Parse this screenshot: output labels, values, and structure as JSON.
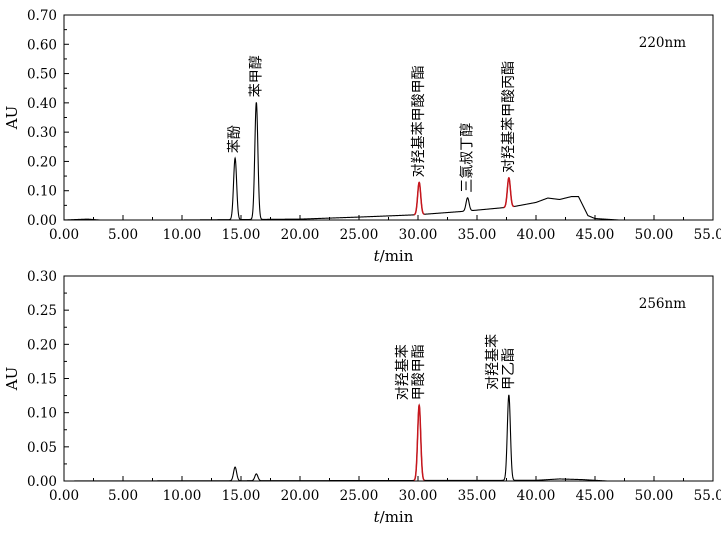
{
  "chart_data": [
    {
      "type": "line",
      "wavelength_label": "220nm",
      "ylabel": "AU",
      "xlabel_italic": "t",
      "xlabel_unit": "/min",
      "xlim": [
        0,
        55
      ],
      "ylim": [
        0,
        0.7
      ],
      "x_ticks": [
        "0.00",
        "5.00",
        "10.00",
        "15.00",
        "20.00",
        "25.00",
        "30.00",
        "35.00",
        "40.00",
        "45.00",
        "50.00",
        "55.00"
      ],
      "y_ticks": [
        "0.00",
        "0.10",
        "0.20",
        "0.30",
        "0.40",
        "0.50",
        "0.60",
        "0.70"
      ],
      "baseline": [
        [
          0,
          0.0
        ],
        [
          2,
          0.003
        ],
        [
          3,
          0.0
        ],
        [
          10,
          0.0
        ],
        [
          20,
          0.003
        ],
        [
          25,
          0.01
        ],
        [
          30,
          0.018
        ],
        [
          34,
          0.03
        ],
        [
          38,
          0.045
        ],
        [
          40,
          0.06
        ],
        [
          41,
          0.075
        ],
        [
          42,
          0.07
        ],
        [
          43,
          0.08
        ],
        [
          43.6,
          0.08
        ],
        [
          44.4,
          0.015
        ],
        [
          45,
          0.005
        ],
        [
          47,
          0.0
        ],
        [
          55,
          0.0
        ]
      ],
      "peaks": [
        {
          "label": "苯酚",
          "rt": 14.5,
          "height": 0.21,
          "highlight": false
        },
        {
          "label": "苯甲醇",
          "rt": 16.3,
          "height": 0.4,
          "highlight": false
        },
        {
          "label": "对羟基苯甲酸甲酯",
          "rt": 30.1,
          "height": 0.11,
          "highlight": true
        },
        {
          "label": "三氯叔丁醇",
          "rt": 34.2,
          "height": 0.045,
          "highlight": false
        },
        {
          "label": "对羟基苯甲酸丙酯",
          "rt": 37.7,
          "height": 0.1,
          "highlight": true
        }
      ]
    },
    {
      "type": "line",
      "wavelength_label": "256nm",
      "ylabel": "AU",
      "xlabel_italic": "t",
      "xlabel_unit": "/min",
      "xlim": [
        0,
        55
      ],
      "ylim": [
        0,
        0.3
      ],
      "x_ticks": [
        "0.00",
        "5.00",
        "10.00",
        "15.00",
        "20.00",
        "25.00",
        "30.00",
        "35.00",
        "40.00",
        "45.00",
        "50.00",
        "55.00"
      ],
      "y_ticks": [
        "0.00",
        "0.05",
        "0.10",
        "0.15",
        "0.20",
        "0.25",
        "0.30"
      ],
      "baseline": [
        [
          0,
          0.0
        ],
        [
          40,
          0.001
        ],
        [
          42,
          0.003
        ],
        [
          44,
          0.002
        ],
        [
          46,
          0.0
        ],
        [
          55,
          0.0
        ]
      ],
      "peaks": [
        {
          "label": "",
          "rt": 14.5,
          "height": 0.02,
          "highlight": false
        },
        {
          "label": "",
          "rt": 16.3,
          "height": 0.01,
          "highlight": false
        },
        {
          "label": "对羟基苯甲酸甲酯",
          "label_lines": [
            "对羟基苯",
            "甲酸甲酯"
          ],
          "rt": 30.1,
          "height": 0.11,
          "highlight": true
        },
        {
          "label": "对羟基苯甲乙酯",
          "label_lines": [
            "对羟基苯",
            "甲乙酯"
          ],
          "rt": 37.7,
          "height": 0.125,
          "highlight": false
        }
      ]
    }
  ]
}
